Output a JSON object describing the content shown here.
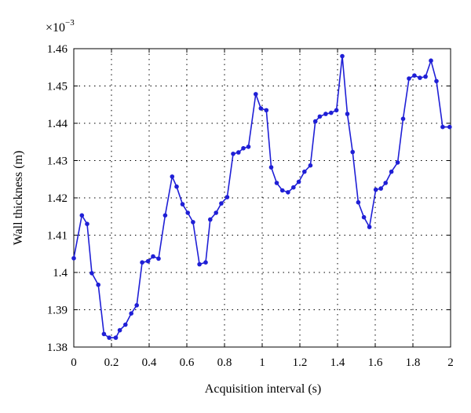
{
  "chart_data": {
    "type": "line",
    "title": "",
    "xlabel": "Acquisition interval (s)",
    "ylabel": "Wall thickness (m)",
    "y_multiplier_label": "×10",
    "y_multiplier_exponent": "−3",
    "xlim": [
      0,
      2
    ],
    "ylim": [
      1.38,
      1.46
    ],
    "x_ticks": [
      0,
      0.2,
      0.4,
      0.6,
      0.8,
      1,
      1.2,
      1.4,
      1.6,
      1.8,
      2
    ],
    "x_tick_labels": [
      "0",
      "0.2",
      "0.4",
      "0.6",
      "0.8",
      "1",
      "1.2",
      "1.4",
      "1.6",
      "1.8",
      "2"
    ],
    "y_ticks": [
      1.38,
      1.39,
      1.4,
      1.41,
      1.42,
      1.43,
      1.44,
      1.45,
      1.46
    ],
    "y_tick_labels": [
      "1.38",
      "1.39",
      "1.4",
      "1.41",
      "1.42",
      "1.43",
      "1.44",
      "1.45",
      "1.46"
    ],
    "grid": true,
    "series_color": "#1f1fd6",
    "series": [
      {
        "x": [
          0.0,
          0.043,
          0.071,
          0.096,
          0.13,
          0.16,
          0.188,
          0.223,
          0.244,
          0.274,
          0.305,
          0.334,
          0.363,
          0.394,
          0.421,
          0.45,
          0.485,
          0.522,
          0.546,
          0.577,
          0.605,
          0.633,
          0.667,
          0.7,
          0.724,
          0.755,
          0.783,
          0.814,
          0.846,
          0.874,
          0.9,
          0.927,
          0.966,
          0.993,
          1.022,
          1.048,
          1.077,
          1.107,
          1.137,
          1.166,
          1.194,
          1.224,
          1.256,
          1.282,
          1.306,
          1.337,
          1.366,
          1.394,
          1.425,
          1.452,
          1.48,
          1.51,
          1.54,
          1.569,
          1.603,
          1.63,
          1.655,
          1.686,
          1.719,
          1.748,
          1.779,
          1.808,
          1.837,
          1.867,
          1.896,
          1.925,
          1.958,
          1.995
        ],
        "y": [
          1.4038,
          1.4153,
          1.413,
          1.3998,
          1.3967,
          1.3835,
          1.3825,
          1.3825,
          1.3845,
          1.386,
          1.389,
          1.3912,
          1.4027,
          1.403,
          1.4043,
          1.4037,
          1.4153,
          1.4257,
          1.423,
          1.4183,
          1.416,
          1.4135,
          1.4022,
          1.4027,
          1.4142,
          1.416,
          1.4185,
          1.4202,
          1.4318,
          1.4322,
          1.4333,
          1.4337,
          1.4478,
          1.444,
          1.4435,
          1.4282,
          1.424,
          1.422,
          1.4215,
          1.4228,
          1.4243,
          1.427,
          1.4287,
          1.4405,
          1.4418,
          1.4425,
          1.4428,
          1.4435,
          1.458,
          1.4425,
          1.4323,
          1.4188,
          1.4148,
          1.4122,
          1.4222,
          1.4225,
          1.424,
          1.427,
          1.4295,
          1.4412,
          1.452,
          1.4528,
          1.4522,
          1.4525,
          1.4568,
          1.4513,
          1.439,
          1.439
        ]
      }
    ]
  }
}
